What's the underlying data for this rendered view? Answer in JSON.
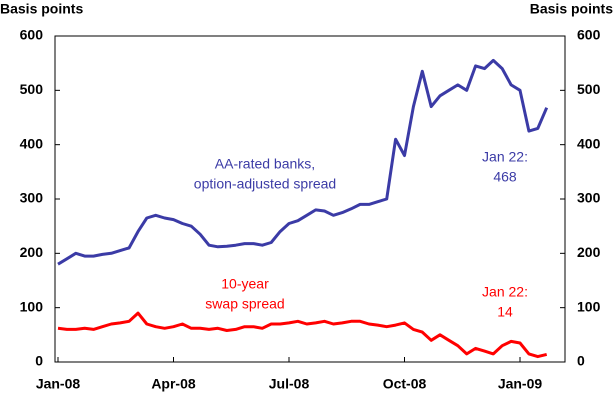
{
  "chart_data": {
    "type": "line",
    "y_axis_label": "Basis points",
    "y2_axis_label": "Basis points",
    "categories": [
      "Jan-08",
      null,
      null,
      null,
      null,
      null,
      null,
      null,
      null,
      null,
      null,
      null,
      null,
      "Apr-08",
      null,
      null,
      null,
      null,
      null,
      null,
      null,
      null,
      null,
      null,
      null,
      null,
      "Jul-08",
      null,
      null,
      null,
      null,
      null,
      null,
      null,
      null,
      null,
      null,
      null,
      null,
      "Oct-08",
      null,
      null,
      null,
      null,
      null,
      null,
      null,
      null,
      null,
      null,
      null,
      null,
      "Jan-09",
      null,
      null,
      null
    ],
    "series": [
      {
        "name": "AA-rated banks, option-adjusted spread",
        "color": "#3b3ba6",
        "values": [
          180,
          190,
          200,
          195,
          195,
          198,
          200,
          205,
          210,
          240,
          265,
          270,
          265,
          262,
          255,
          250,
          235,
          215,
          212,
          213,
          215,
          218,
          218,
          215,
          220,
          240,
          255,
          260,
          270,
          280,
          278,
          270,
          275,
          282,
          290,
          290,
          295,
          300,
          410,
          380,
          470,
          535,
          470,
          490,
          500,
          510,
          500,
          545,
          540,
          555,
          540,
          510,
          500,
          425,
          430,
          468
        ]
      },
      {
        "name": "10-year swap spread",
        "color": "#ff0000",
        "values": [
          62,
          60,
          60,
          62,
          60,
          65,
          70,
          72,
          75,
          90,
          70,
          65,
          62,
          65,
          70,
          62,
          62,
          60,
          62,
          58,
          60,
          65,
          65,
          62,
          70,
          70,
          72,
          75,
          70,
          72,
          75,
          70,
          72,
          75,
          75,
          70,
          68,
          65,
          68,
          72,
          60,
          55,
          40,
          50,
          40,
          30,
          15,
          25,
          20,
          15,
          30,
          38,
          35,
          15,
          10,
          14
        ]
      }
    ],
    "annotations": [
      {
        "lines": [
          "AA-rated banks,",
          "option-adjusted spread"
        ],
        "color": "#3b3ba6"
      },
      {
        "lines": [
          "Jan 22:",
          "468"
        ],
        "color": "#3b3ba6"
      },
      {
        "lines": [
          "10-year",
          "swap spread"
        ],
        "color": "#ff0000"
      },
      {
        "lines": [
          "Jan 22:",
          "14"
        ],
        "color": "#ff0000"
      }
    ],
    "ylim": [
      0,
      600
    ],
    "yticks": [
      0,
      100,
      200,
      300,
      400,
      500,
      600
    ],
    "y2lim": [
      0,
      600
    ],
    "y2ticks": [
      0,
      100,
      200,
      300,
      400,
      500,
      600
    ],
    "grid": false
  }
}
